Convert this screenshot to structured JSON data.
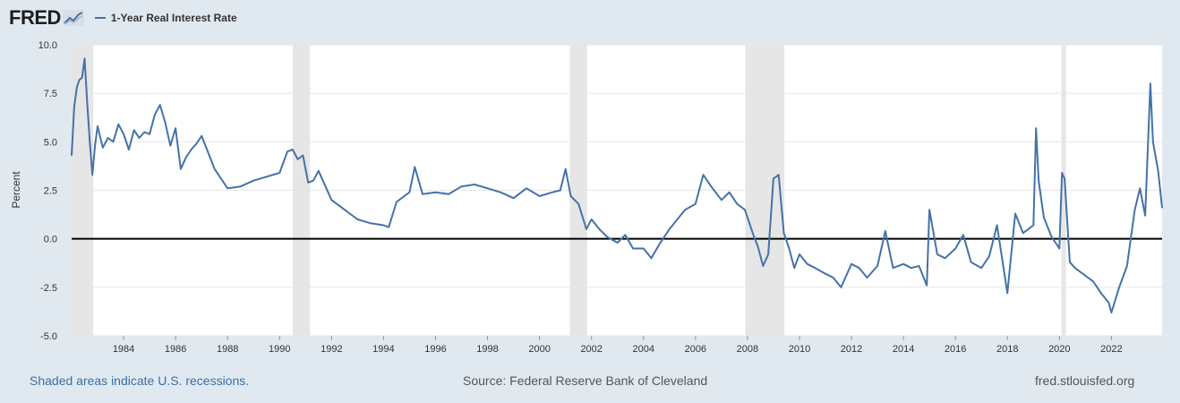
{
  "brand": {
    "logo_text": "FRED",
    "graph_icon": "trend-graph-icon"
  },
  "legend": {
    "series_name": "1-Year Real Interest Rate",
    "color": "#4572a7"
  },
  "footer": {
    "recession_note": "Shaded areas indicate U.S. recessions.",
    "source": "Source: Federal Reserve Bank of Cleveland",
    "site": "fred.stlouisfed.org"
  },
  "colors": {
    "background": "#e1e9f0",
    "plot": "#ffffff",
    "line": "#4572a7",
    "recession": "#e6e6e6",
    "grid": "#e6e6e6"
  },
  "chart_data": {
    "type": "line",
    "title": "",
    "xlabel": "",
    "ylabel": "Percent",
    "xlim": [
      1982.0,
      2023.95
    ],
    "ylim": [
      -5.0,
      10.0
    ],
    "y_ticks": [
      "10.0",
      "7.5",
      "5.0",
      "2.5",
      "0.0",
      "-2.5",
      "-5.0"
    ],
    "y_tick_values": [
      10.0,
      7.5,
      5.0,
      2.5,
      0.0,
      -2.5,
      -5.0
    ],
    "x_ticks": [
      "1984",
      "1986",
      "1988",
      "1990",
      "1992",
      "1994",
      "1996",
      "1998",
      "2000",
      "2002",
      "2004",
      "2006",
      "2008",
      "2010",
      "2012",
      "2014",
      "2016",
      "2018",
      "2020",
      "2022"
    ],
    "x_tick_values": [
      1984,
      1986,
      1988,
      1990,
      1992,
      1994,
      1996,
      1998,
      2000,
      2002,
      2004,
      2006,
      2008,
      2010,
      2012,
      2014,
      2016,
      2018,
      2020,
      2022
    ],
    "grid": true,
    "zero_line": true,
    "recessions": [
      [
        1982.0,
        1982.83
      ],
      [
        1990.5,
        1991.17
      ],
      [
        2001.17,
        2001.83
      ],
      [
        2007.92,
        2009.42
      ],
      [
        2020.08,
        2020.25
      ]
    ],
    "series": [
      {
        "name": "1-Year Real Interest Rate",
        "x": [
          1982.0,
          1982.1,
          1982.2,
          1982.3,
          1982.4,
          1982.5,
          1982.6,
          1982.7,
          1982.8,
          1982.9,
          1983.0,
          1983.2,
          1983.4,
          1983.6,
          1983.8,
          1984.0,
          1984.2,
          1984.4,
          1984.6,
          1984.8,
          1985.0,
          1985.2,
          1985.4,
          1985.6,
          1985.8,
          1986.0,
          1986.2,
          1986.4,
          1986.6,
          1986.8,
          1987.0,
          1987.5,
          1988.0,
          1988.5,
          1989.0,
          1989.5,
          1990.0,
          1990.3,
          1990.5,
          1990.7,
          1990.9,
          1991.1,
          1991.3,
          1991.5,
          1992.0,
          1992.5,
          1993.0,
          1993.5,
          1994.0,
          1994.2,
          1994.5,
          1995.0,
          1995.2,
          1995.5,
          1996.0,
          1996.5,
          1997.0,
          1997.5,
          1998.0,
          1998.5,
          1999.0,
          1999.5,
          2000.0,
          2000.5,
          2000.8,
          2001.0,
          2001.2,
          2001.5,
          2001.8,
          2002.0,
          2002.3,
          2002.6,
          2003.0,
          2003.3,
          2003.6,
          2004.0,
          2004.3,
          2004.6,
          2005.0,
          2005.3,
          2005.6,
          2006.0,
          2006.3,
          2006.6,
          2007.0,
          2007.3,
          2007.6,
          2007.9,
          2008.2,
          2008.4,
          2008.6,
          2008.8,
          2009.0,
          2009.2,
          2009.4,
          2009.6,
          2009.8,
          2010.0,
          2010.3,
          2010.6,
          2011.0,
          2011.3,
          2011.6,
          2012.0,
          2012.3,
          2012.6,
          2013.0,
          2013.3,
          2013.6,
          2014.0,
          2014.3,
          2014.6,
          2014.9,
          2015.0,
          2015.3,
          2015.6,
          2016.0,
          2016.3,
          2016.6,
          2017.0,
          2017.3,
          2017.6,
          2018.0,
          2018.3,
          2018.6,
          2018.9,
          2019.0,
          2019.1,
          2019.2,
          2019.4,
          2019.7,
          2020.0,
          2020.1,
          2020.2,
          2020.4,
          2020.6,
          2021.0,
          2021.3,
          2021.6,
          2021.9,
          2022.0,
          2022.3,
          2022.6,
          2022.9,
          2023.1,
          2023.3,
          2023.5,
          2023.6,
          2023.8,
          2023.95
        ],
        "values": [
          4.3,
          6.8,
          7.8,
          8.2,
          8.3,
          9.3,
          7.0,
          5.0,
          3.3,
          4.8,
          5.8,
          4.7,
          5.2,
          5.0,
          5.9,
          5.4,
          4.6,
          5.6,
          5.2,
          5.5,
          5.4,
          6.4,
          6.9,
          6.0,
          4.8,
          5.7,
          3.6,
          4.2,
          4.6,
          4.9,
          5.3,
          3.6,
          2.6,
          2.7,
          3.0,
          3.2,
          3.4,
          4.5,
          4.6,
          4.1,
          4.3,
          2.9,
          3.0,
          3.5,
          2.0,
          1.5,
          1.0,
          0.8,
          0.7,
          0.6,
          1.9,
          2.4,
          3.7,
          2.3,
          2.4,
          2.3,
          2.7,
          2.8,
          2.6,
          2.4,
          2.1,
          2.6,
          2.2,
          2.4,
          2.5,
          3.6,
          2.2,
          1.8,
          0.5,
          1.0,
          0.5,
          0.1,
          -0.2,
          0.2,
          -0.5,
          -0.5,
          -1.0,
          -0.3,
          0.5,
          1.0,
          1.5,
          1.8,
          3.3,
          2.7,
          2.0,
          2.4,
          1.8,
          1.5,
          0.3,
          -0.4,
          -1.4,
          -0.8,
          3.1,
          3.3,
          0.3,
          -0.5,
          -1.5,
          -0.8,
          -1.3,
          -1.5,
          -1.8,
          -2.0,
          -2.5,
          -1.3,
          -1.5,
          -2.0,
          -1.4,
          0.4,
          -1.5,
          -1.3,
          -1.5,
          -1.4,
          -2.4,
          1.5,
          -0.8,
          -1.0,
          -0.5,
          0.2,
          -1.2,
          -1.5,
          -0.9,
          0.7,
          -2.8,
          1.3,
          0.3,
          0.6,
          0.7,
          5.7,
          3.0,
          1.1,
          0.1,
          -0.5,
          3.4,
          3.1,
          -1.2,
          -1.5,
          -1.9,
          -2.2,
          -2.8,
          -3.3,
          -3.8,
          -2.5,
          -1.4,
          1.5,
          2.6,
          1.2,
          8.0,
          5.0,
          3.5,
          1.6
        ]
      }
    ]
  }
}
